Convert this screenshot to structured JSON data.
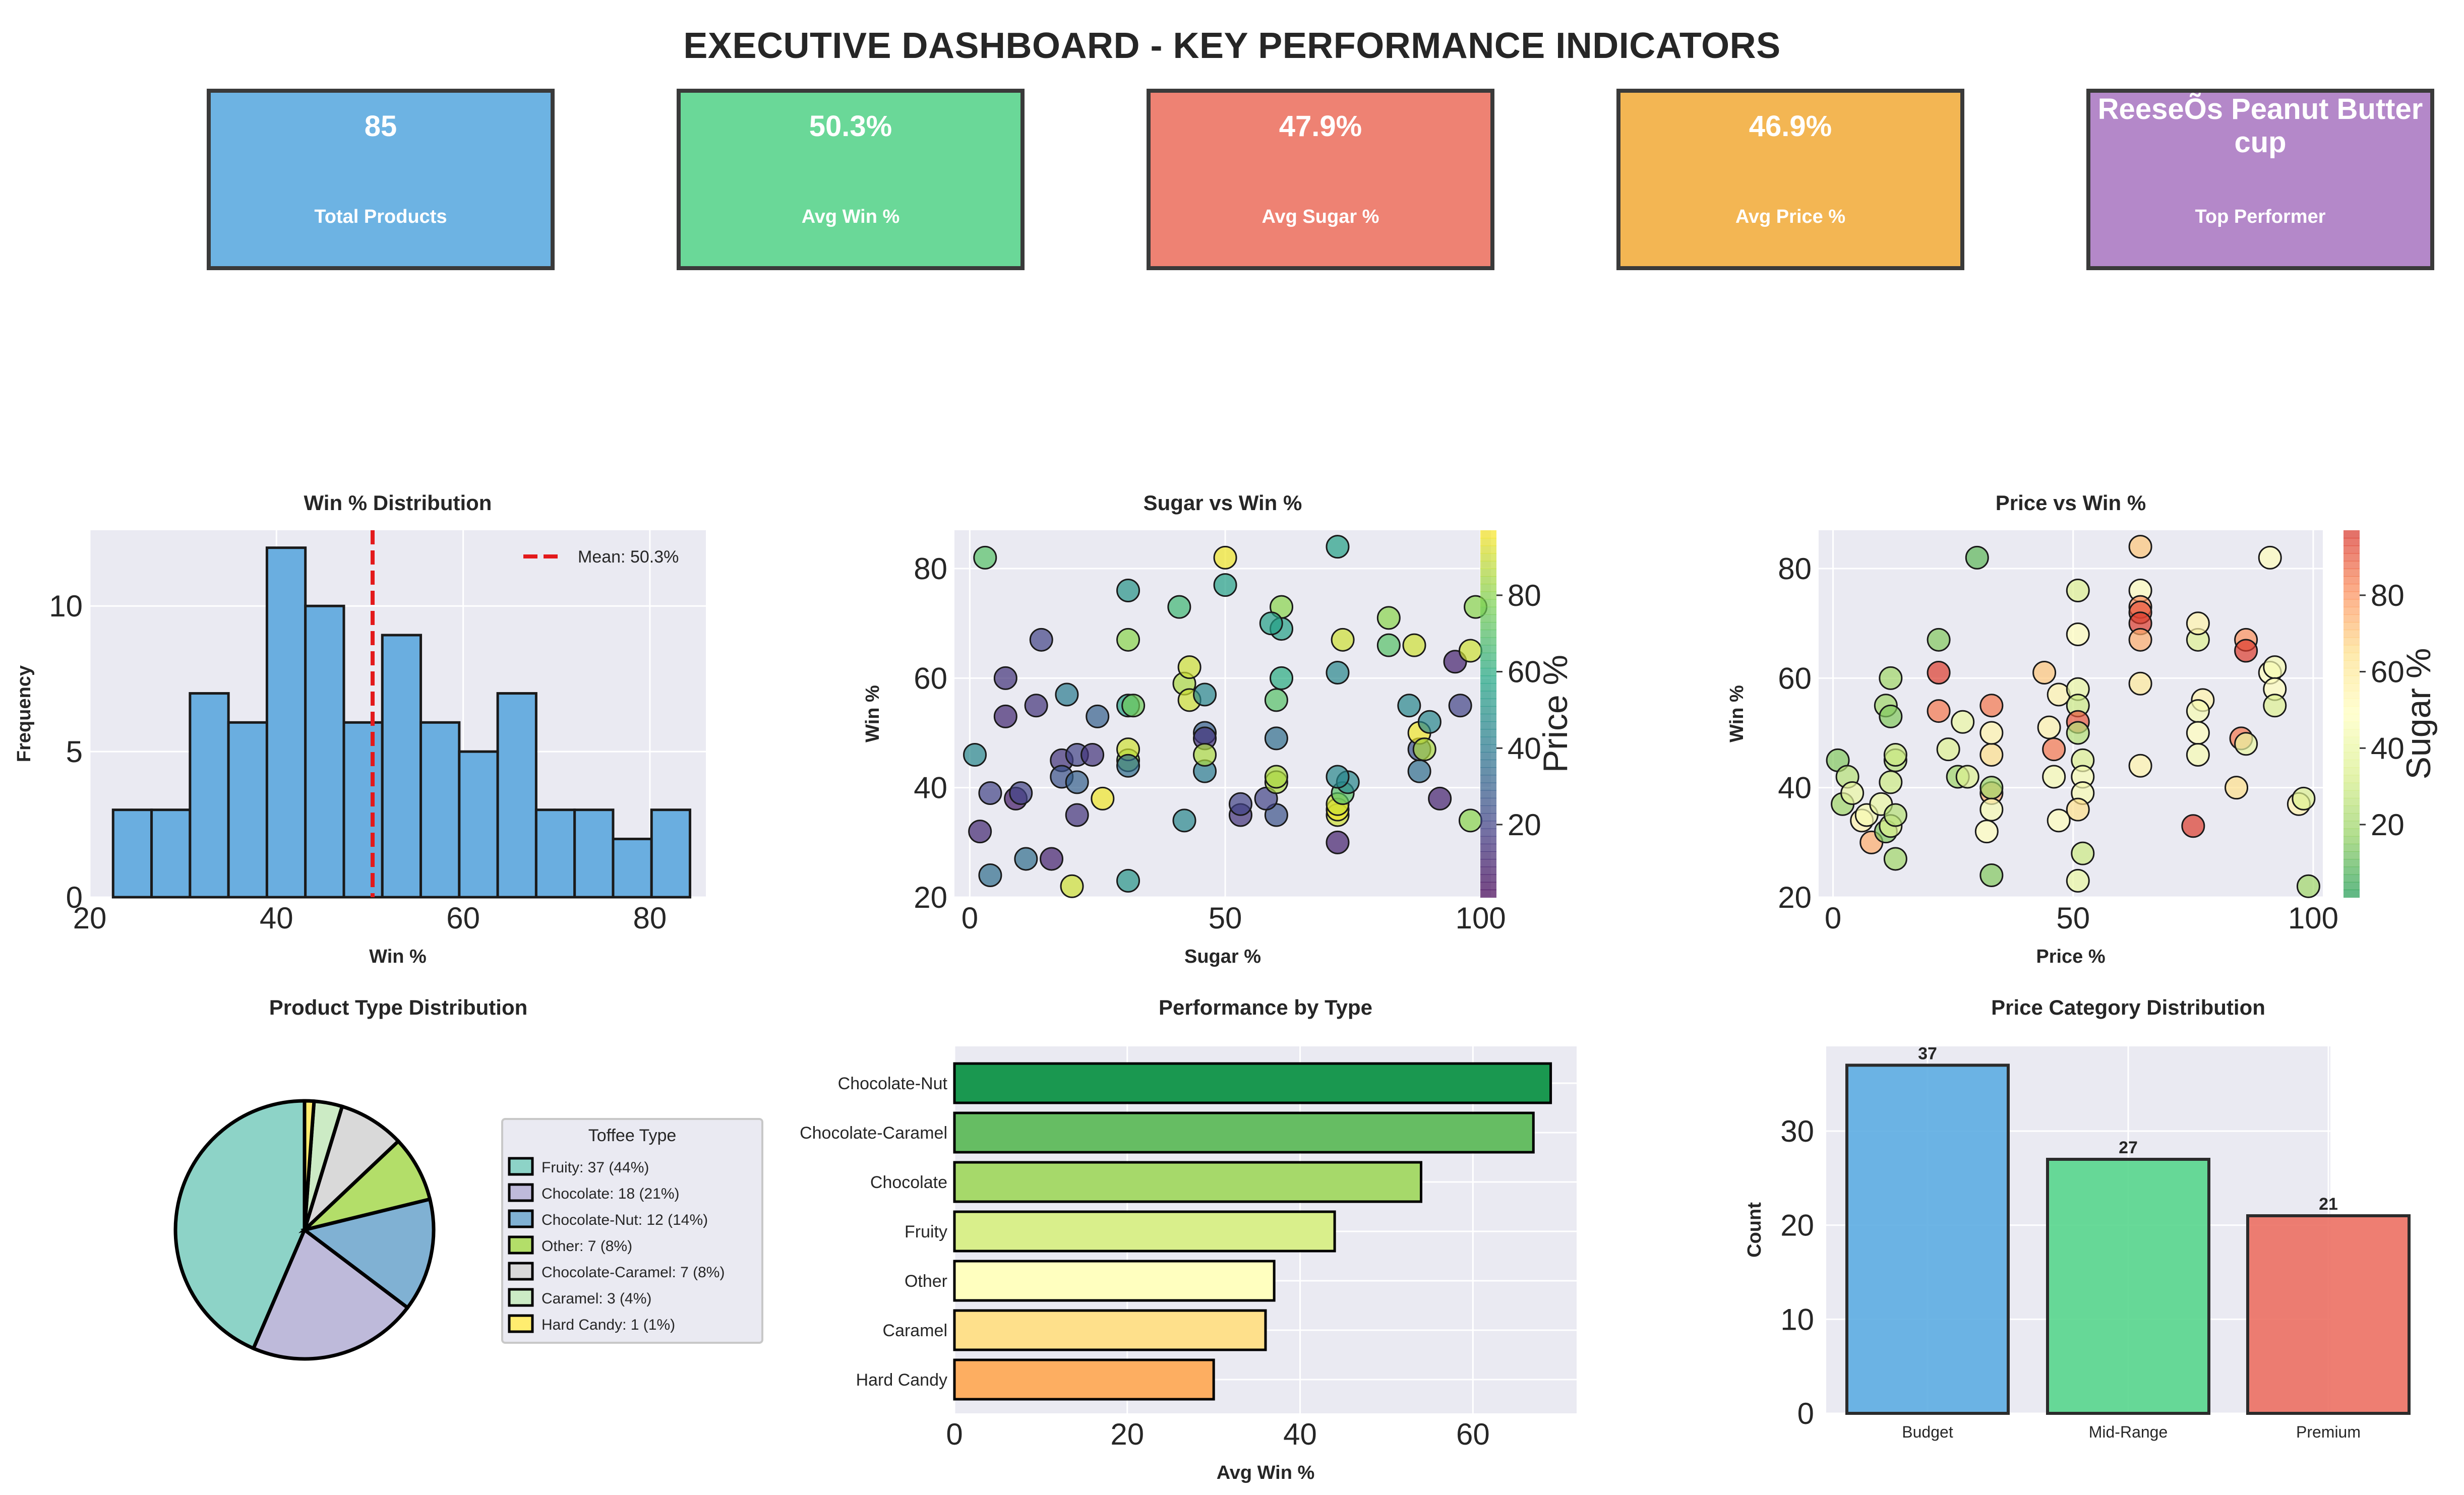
{
  "dashboard_title": "EXECUTIVE DASHBOARD - KEY PERFORMANCE INDICATORS",
  "kpis": [
    {
      "value": "85",
      "label": "Total Products",
      "color": "#6db3e3"
    },
    {
      "value": "50.3%",
      "label": "Avg Win %",
      "color": "#6ad898"
    },
    {
      "value": "47.9%",
      "label": "Avg Sugar %",
      "color": "#ee8273"
    },
    {
      "value": "46.9%",
      "label": "Avg Price %",
      "color": "#f3b653"
    },
    {
      "value": "ReeseÕs Peanut Butter cup",
      "label": "Top Performer",
      "color": "#b488c9"
    }
  ],
  "chart_data": [
    {
      "type": "histogram",
      "title": "Win % Distribution",
      "xlabel": "Win %",
      "ylabel": "Frequency",
      "bin_start": 22.5,
      "bin_width": 4.12,
      "counts": [
        3,
        3,
        7,
        6,
        12,
        10,
        6,
        9,
        6,
        5,
        7,
        3,
        3,
        2,
        3
      ],
      "mean_line": 50.3,
      "legend": "Mean: 50.3%",
      "xlim": [
        20,
        86
      ],
      "ylim": [
        0,
        12.6
      ],
      "xticks": [
        "20",
        "40",
        "60",
        "80"
      ],
      "yticks": [
        "0",
        "5",
        "10"
      ],
      "color": "#6aaee0"
    },
    {
      "type": "scatter",
      "title": "Sugar vs Win %",
      "xlabel": "Sugar %",
      "ylabel": "Win %",
      "xlim": [
        -3,
        102
      ],
      "ylim": [
        20,
        87
      ],
      "xticks": [
        "0",
        "50",
        "100"
      ],
      "yticks": [
        "20",
        "40",
        "60",
        "80"
      ],
      "colorbar_label": "Price %",
      "colorbar_ticks": [
        "20",
        "40",
        "60",
        "80"
      ],
      "colorbar_range": [
        1,
        97
      ],
      "points": [
        [
          3,
          82,
          70
        ],
        [
          1,
          46,
          45
        ],
        [
          2,
          32,
          12
        ],
        [
          4,
          39,
          20
        ],
        [
          4,
          24,
          35
        ],
        [
          7,
          60,
          15
        ],
        [
          7,
          53,
          12
        ],
        [
          9,
          38,
          8
        ],
        [
          10,
          39,
          20
        ],
        [
          13,
          55,
          15
        ],
        [
          14,
          67,
          20
        ],
        [
          11,
          27,
          35
        ],
        [
          16,
          27,
          10
        ],
        [
          18,
          45,
          15
        ],
        [
          18,
          42,
          25
        ],
        [
          19,
          57,
          40
        ],
        [
          20,
          22,
          90
        ],
        [
          21,
          35,
          15
        ],
        [
          21,
          41,
          30
        ],
        [
          21,
          46,
          20
        ],
        [
          24,
          46,
          15
        ],
        [
          25,
          53,
          30
        ],
        [
          26,
          38,
          95
        ],
        [
          31,
          23,
          50
        ],
        [
          31,
          76,
          50
        ],
        [
          31,
          55,
          55
        ],
        [
          31,
          45,
          80
        ],
        [
          31,
          47,
          90
        ],
        [
          31,
          67,
          80
        ],
        [
          31,
          44,
          35
        ],
        [
          32,
          55,
          75
        ],
        [
          41,
          73,
          65
        ],
        [
          42,
          34,
          45
        ],
        [
          42,
          59,
          85
        ],
        [
          43,
          56,
          90
        ],
        [
          43,
          62,
          90
        ],
        [
          46,
          43,
          40
        ],
        [
          46,
          50,
          30
        ],
        [
          46,
          49,
          15
        ],
        [
          46,
          57,
          45
        ],
        [
          46,
          46,
          85
        ],
        [
          50,
          77,
          55
        ],
        [
          50,
          82,
          95
        ],
        [
          53,
          35,
          15
        ],
        [
          53,
          37,
          20
        ],
        [
          60,
          35,
          25
        ],
        [
          58,
          38,
          20
        ],
        [
          60,
          41,
          85
        ],
        [
          60,
          42,
          85
        ],
        [
          60,
          49,
          35
        ],
        [
          60,
          56,
          70
        ],
        [
          61,
          60,
          60
        ],
        [
          61,
          69,
          55
        ],
        [
          61,
          73,
          80
        ],
        [
          59,
          70,
          55
        ],
        [
          72,
          84,
          55
        ],
        [
          72,
          61,
          45
        ],
        [
          72,
          30,
          10
        ],
        [
          72,
          35,
          90
        ],
        [
          72,
          36,
          95
        ],
        [
          72,
          37,
          90
        ],
        [
          73,
          39,
          70
        ],
        [
          74,
          41,
          45
        ],
        [
          72,
          42,
          45
        ],
        [
          73,
          67,
          90
        ],
        [
          82,
          71,
          80
        ],
        [
          82,
          66,
          70
        ],
        [
          86,
          55,
          45
        ],
        [
          87,
          66,
          90
        ],
        [
          88,
          43,
          35
        ],
        [
          88,
          47,
          25
        ],
        [
          88,
          50,
          95
        ],
        [
          90,
          52,
          45
        ],
        [
          89,
          47,
          85
        ],
        [
          92,
          38,
          10
        ],
        [
          95,
          63,
          10
        ],
        [
          96,
          55,
          20
        ],
        [
          98,
          65,
          90
        ],
        [
          98,
          34,
          80
        ],
        [
          99,
          73,
          80
        ]
      ]
    },
    {
      "type": "scatter",
      "title": "Price vs Win %",
      "xlabel": "Price %",
      "ylabel": "Win %",
      "xlim": [
        -3,
        102
      ],
      "ylim": [
        20,
        87
      ],
      "xticks": [
        "0",
        "50",
        "100"
      ],
      "yticks": [
        "20",
        "40",
        "60",
        "80"
      ],
      "colorbar_label": "Sugar %",
      "colorbar_ticks": [
        "20",
        "40",
        "60",
        "80"
      ],
      "colorbar_range": [
        1,
        97
      ],
      "points": [
        [
          1,
          45,
          15
        ],
        [
          2,
          37,
          20
        ],
        [
          3,
          42,
          25
        ],
        [
          4,
          39,
          40
        ],
        [
          6,
          34,
          55
        ],
        [
          7,
          35,
          45
        ],
        [
          8,
          30,
          75
        ],
        [
          10,
          37,
          40
        ],
        [
          11,
          55,
          20
        ],
        [
          11,
          32,
          15
        ],
        [
          12,
          60,
          20
        ],
        [
          13,
          45,
          25
        ],
        [
          12,
          53,
          15
        ],
        [
          12,
          41,
          30
        ],
        [
          13,
          27,
          20
        ],
        [
          13,
          46,
          30
        ],
        [
          12,
          33,
          35
        ],
        [
          13,
          35,
          25
        ],
        [
          22,
          67,
          15
        ],
        [
          22,
          54,
          85
        ],
        [
          22,
          61,
          95
        ],
        [
          24,
          47,
          35
        ],
        [
          26,
          42,
          20
        ],
        [
          27,
          52,
          40
        ],
        [
          28,
          42,
          35
        ],
        [
          30,
          82,
          10
        ],
        [
          33,
          24,
          15
        ],
        [
          33,
          39,
          75
        ],
        [
          33,
          46,
          65
        ],
        [
          33,
          50,
          55
        ],
        [
          33,
          55,
          85
        ],
        [
          33,
          40,
          20
        ],
        [
          32,
          32,
          50
        ],
        [
          33,
          36,
          45
        ],
        [
          44,
          61,
          70
        ],
        [
          45,
          51,
          55
        ],
        [
          46,
          42,
          45
        ],
        [
          46,
          47,
          85
        ],
        [
          47,
          34,
          50
        ],
        [
          47,
          57,
          55
        ],
        [
          51,
          76,
          35
        ],
        [
          51,
          68,
          50
        ],
        [
          51,
          58,
          40
        ],
        [
          51,
          55,
          30
        ],
        [
          51,
          52,
          90
        ],
        [
          51,
          50,
          25
        ],
        [
          52,
          45,
          35
        ],
        [
          52,
          42,
          45
        ],
        [
          52,
          39,
          45
        ],
        [
          51,
          36,
          65
        ],
        [
          52,
          28,
          30
        ],
        [
          51,
          23,
          40
        ],
        [
          64,
          84,
          70
        ],
        [
          64,
          76,
          50
        ],
        [
          64,
          73,
          80
        ],
        [
          64,
          72,
          90
        ],
        [
          64,
          70,
          95
        ],
        [
          64,
          67,
          75
        ],
        [
          64,
          59,
          60
        ],
        [
          64,
          44,
          55
        ],
        [
          76,
          67,
          35
        ],
        [
          76,
          70,
          55
        ],
        [
          77,
          56,
          55
        ],
        [
          76,
          54,
          45
        ],
        [
          76,
          50,
          50
        ],
        [
          76,
          46,
          45
        ],
        [
          75,
          33,
          95
        ],
        [
          84,
          40,
          65
        ],
        [
          85,
          49,
          85
        ],
        [
          86,
          67,
          80
        ],
        [
          86,
          65,
          95
        ],
        [
          86,
          48,
          40
        ],
        [
          91,
          82,
          50
        ],
        [
          91,
          61,
          50
        ],
        [
          92,
          62,
          45
        ],
        [
          92,
          58,
          50
        ],
        [
          92,
          55,
          35
        ],
        [
          97,
          37,
          55
        ],
        [
          98,
          38,
          35
        ],
        [
          99,
          22,
          20
        ]
      ]
    },
    {
      "type": "pie",
      "title": "Product Type Distribution",
      "legend_title": "Toffee Type",
      "slices": [
        {
          "label": "Fruity",
          "value": 37,
          "text": "Fruity: 37 (44%)",
          "color": "#8dd3c7"
        },
        {
          "label": "Chocolate",
          "value": 18,
          "text": "Chocolate: 18 (21%)",
          "color": "#bebada"
        },
        {
          "label": "Chocolate-Nut",
          "value": 12,
          "text": "Chocolate-Nut: 12 (14%)",
          "color": "#80b1d3"
        },
        {
          "label": "Other",
          "value": 7,
          "text": "Other: 7 (8%)",
          "color": "#b3de69"
        },
        {
          "label": "Chocolate-Caramel",
          "value": 7,
          "text": "Chocolate-Caramel: 7 (8%)",
          "color": "#d9d9d9"
        },
        {
          "label": "Caramel",
          "value": 3,
          "text": "Caramel: 3 (4%)",
          "color": "#ccebc5"
        },
        {
          "label": "Hard Candy",
          "value": 1,
          "text": "Hard Candy: 1 (1%)",
          "color": "#ffed6f"
        }
      ]
    },
    {
      "type": "bar",
      "orientation": "horizontal",
      "title": "Performance by Type",
      "xlabel": "Avg Win %",
      "xlim": [
        0,
        72
      ],
      "xticks": [
        "0",
        "20",
        "40",
        "60"
      ],
      "categories": [
        "Chocolate-Nut",
        "Chocolate-Caramel",
        "Chocolate",
        "Fruity",
        "Other",
        "Caramel",
        "Hard Candy"
      ],
      "values": [
        69,
        67,
        54,
        44,
        37,
        36,
        30
      ],
      "colors": [
        "#1a9850",
        "#66bd63",
        "#a6d96a",
        "#d9ef8b",
        "#ffffbf",
        "#fee08b",
        "#fdae61"
      ]
    },
    {
      "type": "bar",
      "title": "Price Category Distribution",
      "ylabel": "Count",
      "ylim": [
        0,
        39
      ],
      "yticks": [
        "0",
        "10",
        "20",
        "30"
      ],
      "categories": [
        "Budget",
        "Mid-Range",
        "Premium"
      ],
      "values": [
        37,
        27,
        21
      ],
      "labels": [
        "37",
        "27",
        "21"
      ],
      "colors": [
        "#5dade2",
        "#58d68d",
        "#ec7063"
      ]
    }
  ]
}
